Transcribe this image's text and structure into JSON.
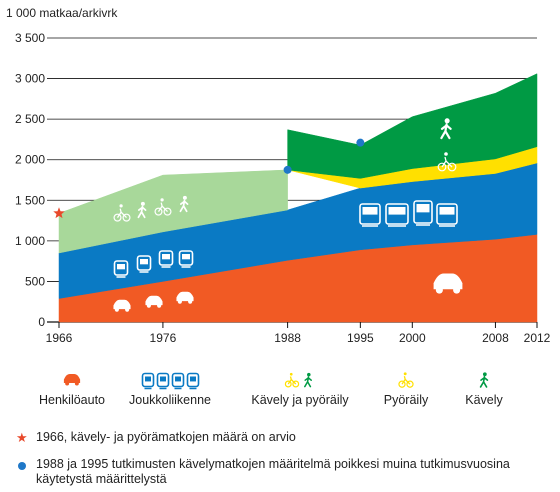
{
  "chart_data": {
    "type": "area",
    "stacked": true,
    "ylabel": "1 000 matkaa/arkivrk",
    "ylim": [
      0,
      3500
    ],
    "yticks": [
      0,
      500,
      1000,
      1500,
      2000,
      2500,
      3000,
      3500
    ],
    "ytick_labels": [
      "0",
      "500",
      "1 000",
      "1 500",
      "2 000",
      "2 500",
      "3 000",
      "3 500"
    ],
    "xlim": [
      1966,
      2012
    ],
    "xticks": [
      1966,
      1976,
      1988,
      1995,
      2000,
      2008,
      2012
    ],
    "grid": true,
    "series": [
      {
        "name": "Henkilöauto",
        "color": "#f15a24",
        "x": [
          1966,
          1976,
          1988,
          1995,
          2000,
          2008,
          2012
        ],
        "values": [
          290,
          500,
          760,
          890,
          950,
          1020,
          1080
        ]
      },
      {
        "name": "Joukkoliikenne",
        "color": "#0a7ac4",
        "x": [
          1966,
          1976,
          1988,
          1995,
          2000,
          2008,
          2012
        ],
        "values": [
          560,
          610,
          620,
          760,
          780,
          810,
          880
        ]
      },
      {
        "name": "Kävely ja pyöräily",
        "color": "#a8d89a",
        "x": [
          1966,
          1976,
          1988
        ],
        "values": [
          490,
          700,
          495
        ]
      },
      {
        "name": "Pyöräily",
        "color": "#ffe000",
        "x": [
          1988,
          1995,
          2000,
          2008,
          2012
        ],
        "values": [
          0,
          120,
          160,
          180,
          200
        ]
      },
      {
        "name": "Kävely",
        "color": "#009a44",
        "x": [
          1988,
          1995,
          2000,
          2008,
          2012
        ],
        "values": [
          495,
          410,
          640,
          810,
          900
        ]
      }
    ],
    "markers": [
      {
        "type": "star",
        "x": 1966,
        "y": 1340,
        "color": "#e8492b"
      },
      {
        "type": "dot",
        "x": 1988,
        "y": 1875,
        "color": "#1f78c8"
      },
      {
        "type": "dot",
        "x": 1995,
        "y": 2210,
        "color": "#1f78c8"
      }
    ],
    "legend": [
      {
        "label": "Henkilöauto",
        "icon": "car-icon",
        "color": "#f15a24"
      },
      {
        "label": "Joukkoliikenne",
        "icon": "transit-icons",
        "color": "#0a7ac4"
      },
      {
        "label": "Kävely ja pyöräily",
        "icon": "walk-bike-icons",
        "color": "#ffe000"
      },
      {
        "label": "Pyöräily",
        "icon": "bicycle-icon",
        "color": "#ffe000"
      },
      {
        "label": "Kävely",
        "icon": "pedestrian-icon",
        "color": "#009a44"
      }
    ],
    "legend_placement": "bottom"
  },
  "notes": [
    {
      "symbol": "star-icon",
      "text": "1966, kävely- ja pyörämatkojen määrä on arvio"
    },
    {
      "symbol": "dot-icon",
      "text": "1988 ja 1995 tutkimusten kävelymatkojen määritelmä poikkesi muina tutkimusvuosina käytetystä määrittelystä"
    }
  ]
}
